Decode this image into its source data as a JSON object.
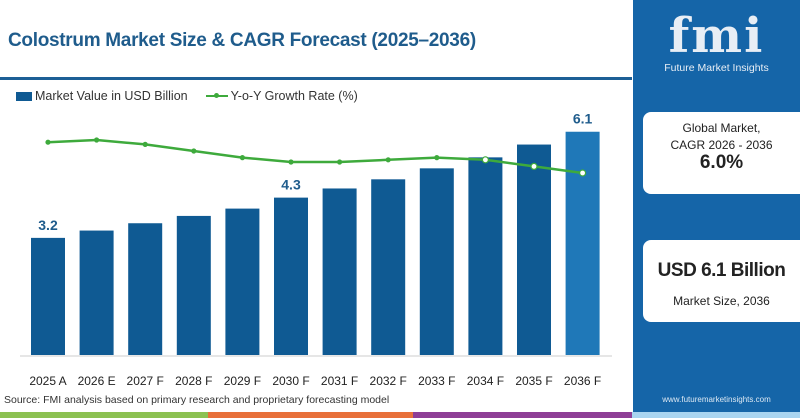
{
  "header": {
    "title": "Colostrum Market Size & CAGR Forecast (2025–2036)"
  },
  "chart_data": {
    "type": "bar",
    "title": "Colostrum Market Size & CAGR Forecast (2025–2036)",
    "categories": [
      "2025 A",
      "2026 E",
      "2027 F",
      "2028 F",
      "2029 F",
      "2030 F",
      "2031 F",
      "2032 F",
      "2033 F",
      "2034 F",
      "2035 F",
      "2036 F"
    ],
    "series": [
      {
        "name": "Market Value in USD Billion",
        "type": "bar",
        "values": [
          3.2,
          3.4,
          3.6,
          3.8,
          4.0,
          4.3,
          4.55,
          4.8,
          5.1,
          5.4,
          5.75,
          6.1
        ]
      },
      {
        "name": "Y-o-Y Growth Rate (%)",
        "type": "line",
        "values": [
          6.5,
          6.6,
          6.4,
          6.1,
          5.8,
          5.6,
          5.6,
          5.7,
          5.8,
          5.7,
          5.4,
          5.1
        ]
      }
    ],
    "data_labels": {
      "0": "3.2",
      "5": "4.3",
      "11": "6.1"
    },
    "legend": "top-left",
    "ylim": [
      0,
      6.5
    ],
    "grid": false,
    "colors": {
      "bar": "#0f5a93",
      "bar_highlight": "#1f78b8",
      "line": "#3eaa3c"
    }
  },
  "source": "Source: FMI analysis based on primary research and proprietary forecasting model",
  "panel": {
    "logo_text": "fmi",
    "logo_sub": "Future Market Insights",
    "cagr_label1": "Global Market,",
    "cagr_label2": "CAGR 2026 - 2036",
    "cagr_value": "6.0%",
    "size_value": "USD 6.1 Billion",
    "size_label": "Market Size, 2036",
    "url": "www.futuremarketinsights.com"
  }
}
